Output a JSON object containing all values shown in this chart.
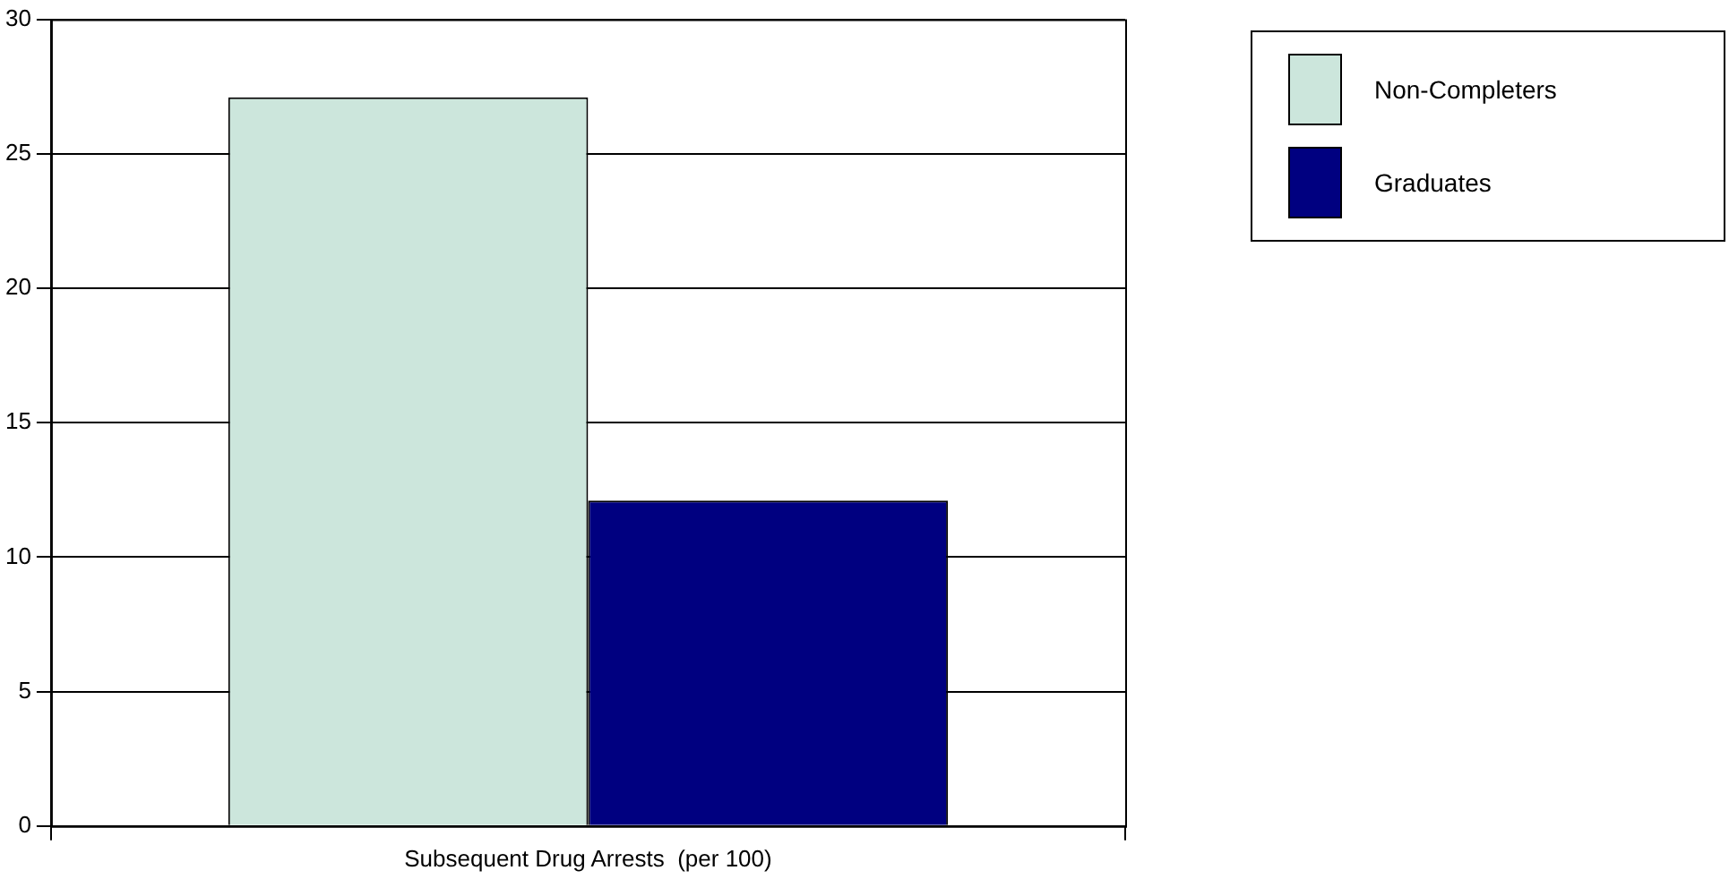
{
  "chart_data": {
    "type": "bar",
    "categories": [
      "Subsequent Drug Arrests  (per 100)"
    ],
    "series": [
      {
        "name": "Non-Completers",
        "color": "#cce6dc",
        "values": [
          27.1
        ]
      },
      {
        "name": "Graduates",
        "color": "#000080",
        "values": [
          12.1
        ]
      }
    ],
    "ylim": [
      0,
      30
    ],
    "yticks": [
      0,
      5,
      10,
      15,
      20,
      25,
      30
    ],
    "grid": "y",
    "legend": "top right"
  }
}
